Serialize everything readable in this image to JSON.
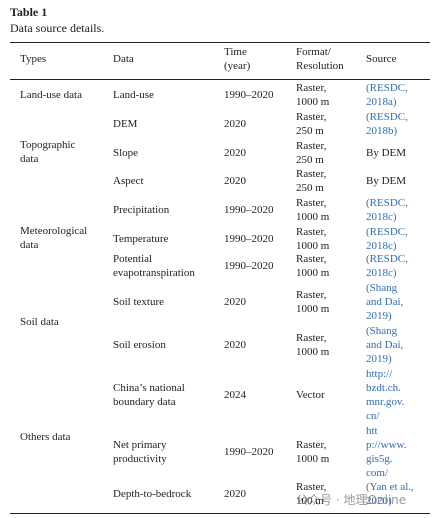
{
  "title": "Table 1",
  "caption": "Data source details.",
  "watermark": "公众号 · 地理Online",
  "table": {
    "header": [
      [
        "Types"
      ],
      [
        "Data"
      ],
      [
        "Time",
        "(year)"
      ],
      [
        "Format/",
        "Resolution"
      ],
      [
        "Source"
      ]
    ],
    "types": [
      [
        "Land-use data"
      ],
      [
        "Topographic",
        "data"
      ],
      [
        "Meteorological",
        "data"
      ],
      [
        "Soil data"
      ],
      [
        "Others data"
      ]
    ],
    "rows": [
      {
        "data": [
          "Land-use"
        ],
        "time": [
          "1990–2020"
        ],
        "format": [
          "Raster,",
          "1000 m"
        ],
        "source": [
          "(RESDC,",
          "2018a)"
        ],
        "source_color": "#2f6eb5"
      },
      {
        "data": [
          "DEM"
        ],
        "time": [
          "2020"
        ],
        "format": [
          "Raster,",
          "250 m"
        ],
        "source": [
          "(RESDC,",
          "2018b)"
        ],
        "source_color": "#2f6eb5"
      },
      {
        "data": [
          "Slope"
        ],
        "time": [
          "2020"
        ],
        "format": [
          "Raster,",
          "250 m"
        ],
        "source": [
          "By DEM"
        ],
        "source_color": "#222222"
      },
      {
        "data": [
          "Aspect"
        ],
        "time": [
          "2020"
        ],
        "format": [
          "Raster,",
          "250 m"
        ],
        "source": [
          "By DEM"
        ],
        "source_color": "#222222"
      },
      {
        "data": [
          "Precipitation"
        ],
        "time": [
          "1990–2020"
        ],
        "format": [
          "Raster,",
          "1000 m"
        ],
        "source": [
          "(RESDC,",
          "2018c)"
        ],
        "source_color": "#2f6eb5"
      },
      {
        "data": [
          "Temperature"
        ],
        "time": [
          "1990–2020"
        ],
        "format": [
          "Raster,",
          "1000 m"
        ],
        "source": [
          "(RESDC,",
          "2018c)"
        ],
        "source_color": "#2f6eb5"
      },
      {
        "data": [
          "Potential",
          "evapotranspiration"
        ],
        "time": [
          "1990–2020"
        ],
        "format": [
          "Raster,",
          "1000 m"
        ],
        "source": [
          "(RESDC,",
          "2018c)"
        ],
        "source_color": "#2f6eb5"
      },
      {
        "data": [
          "Soil texture"
        ],
        "time": [
          "2020"
        ],
        "format": [
          "Raster,",
          "1000 m"
        ],
        "source": [
          "(Shang",
          "and Dai,",
          "2019)"
        ],
        "source_color": "#2f6eb5"
      },
      {
        "data": [
          "Soil erosion"
        ],
        "time": [
          "2020"
        ],
        "format": [
          "Raster,",
          "1000 m"
        ],
        "source": [
          "(Shang",
          "and Dai,",
          "2019)"
        ],
        "source_color": "#2f6eb5"
      },
      {
        "data": [
          "China’s national",
          "boundary data"
        ],
        "time": [
          "2024"
        ],
        "format": [
          "Vector"
        ],
        "source": [
          "http://",
          "bzdt.ch.",
          "mnr.gov.",
          "cn/"
        ],
        "source_color": "#2f6eb5"
      },
      {
        "data": [
          "Net primary",
          "productivity"
        ],
        "time": [
          "1990–2020"
        ],
        "format": [
          "Raster,",
          "1000 m"
        ],
        "source": [
          "htt",
          "p://www.",
          "gis5g.",
          "com/"
        ],
        "source_color": "#2f6eb5"
      },
      {
        "data": [
          "Depth-to-bedrock"
        ],
        "time": [
          "2020"
        ],
        "format": [
          "Raster,",
          "100 m"
        ],
        "source": [
          "(Yan et al.,",
          "2020)"
        ],
        "source_color": "#2f6eb5"
      }
    ]
  }
}
